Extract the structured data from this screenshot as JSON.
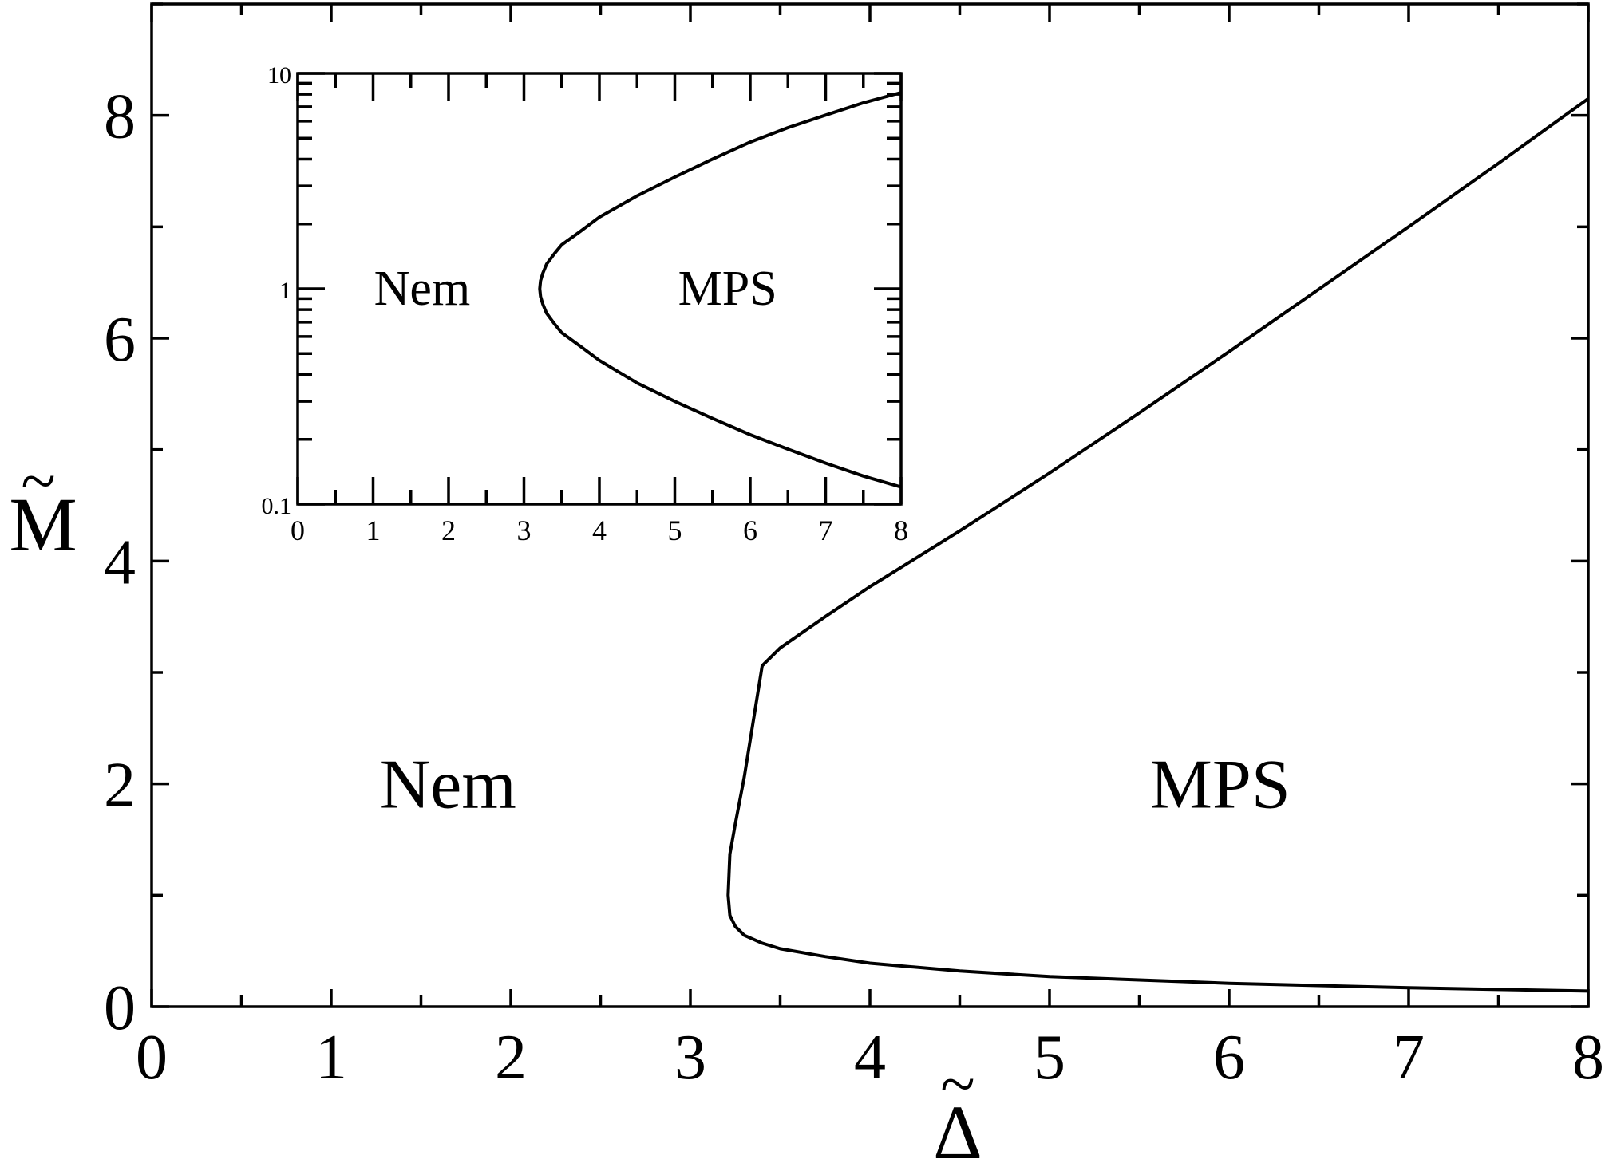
{
  "chart_data": [
    {
      "id": "main",
      "type": "line",
      "title": "",
      "xlabel": "Δ",
      "ylabel": "M",
      "label_accent": "~",
      "xlim": [
        0,
        8
      ],
      "ylim": [
        0,
        9
      ],
      "xticks": [
        0,
        1,
        2,
        3,
        4,
        5,
        6,
        7,
        8
      ],
      "xtick_labels": [
        "0",
        "1",
        "2",
        "3",
        "4",
        "5",
        "6",
        "7",
        "8"
      ],
      "yticks": [
        0,
        2,
        4,
        6,
        8
      ],
      "ytick_labels": [
        "0",
        "2",
        "4",
        "6",
        "8"
      ],
      "region_labels": [
        {
          "text": "Nem",
          "x": 1.65,
          "y": 2.0
        },
        {
          "text": "MPS",
          "x": 5.95,
          "y": 2.0
        }
      ],
      "series": [
        {
          "x": [
            8.0,
            7.5,
            7.0,
            6.5,
            6.0,
            5.5,
            5.0,
            4.5,
            4.0,
            3.75,
            3.5,
            3.4,
            3.3,
            3.25,
            3.22,
            3.21,
            3.22,
            3.25,
            3.3,
            3.4,
            3.5,
            3.75,
            4.0,
            4.5,
            5.0,
            5.5,
            6.0,
            6.5,
            7.0,
            7.5,
            8.0
          ],
          "y": [
            8.15,
            7.57,
            7.0,
            6.44,
            5.88,
            5.33,
            4.79,
            4.27,
            3.77,
            3.5,
            3.22,
            3.06,
            2.06,
            1.64,
            1.37,
            1.0,
            0.82,
            0.72,
            0.64,
            0.57,
            0.52,
            0.45,
            0.39,
            0.32,
            0.27,
            0.24,
            0.21,
            0.19,
            0.17,
            0.155,
            0.14
          ]
        }
      ]
    },
    {
      "id": "inset",
      "type": "line",
      "title": "",
      "xlabel": "",
      "ylabel": "",
      "xlim": [
        0,
        8
      ],
      "ylim": [
        0.1,
        10
      ],
      "yscale": "log",
      "xticks": [
        0,
        1,
        2,
        3,
        4,
        5,
        6,
        7,
        8
      ],
      "xtick_labels": [
        "0",
        "1",
        "2",
        "3",
        "4",
        "5",
        "6",
        "7",
        "8"
      ],
      "yticks": [
        0.1,
        1,
        10
      ],
      "ytick_labels": [
        "0.1",
        "1",
        "10"
      ],
      "region_labels": [
        {
          "text": "Nem",
          "x": 1.65,
          "y": 1.0
        },
        {
          "text": "MPS",
          "x": 5.7,
          "y": 1.0
        }
      ],
      "series": [
        {
          "x": [
            8.0,
            7.5,
            7.0,
            6.5,
            6.0,
            5.5,
            5.0,
            4.5,
            4.0,
            3.75,
            3.5,
            3.4,
            3.3,
            3.25,
            3.22,
            3.21,
            3.22,
            3.25,
            3.3,
            3.4,
            3.5,
            3.75,
            4.0,
            4.5,
            5.0,
            5.5,
            6.0,
            6.5,
            7.0,
            7.5,
            8.0
          ],
          "y": [
            8.15,
            7.3,
            6.4,
            5.6,
            4.8,
            4.0,
            3.3,
            2.7,
            2.15,
            1.85,
            1.6,
            1.45,
            1.3,
            1.18,
            1.09,
            1.0,
            0.92,
            0.85,
            0.77,
            0.69,
            0.625,
            0.54,
            0.465,
            0.365,
            0.3,
            0.25,
            0.21,
            0.18,
            0.155,
            0.135,
            0.12
          ]
        }
      ]
    }
  ]
}
